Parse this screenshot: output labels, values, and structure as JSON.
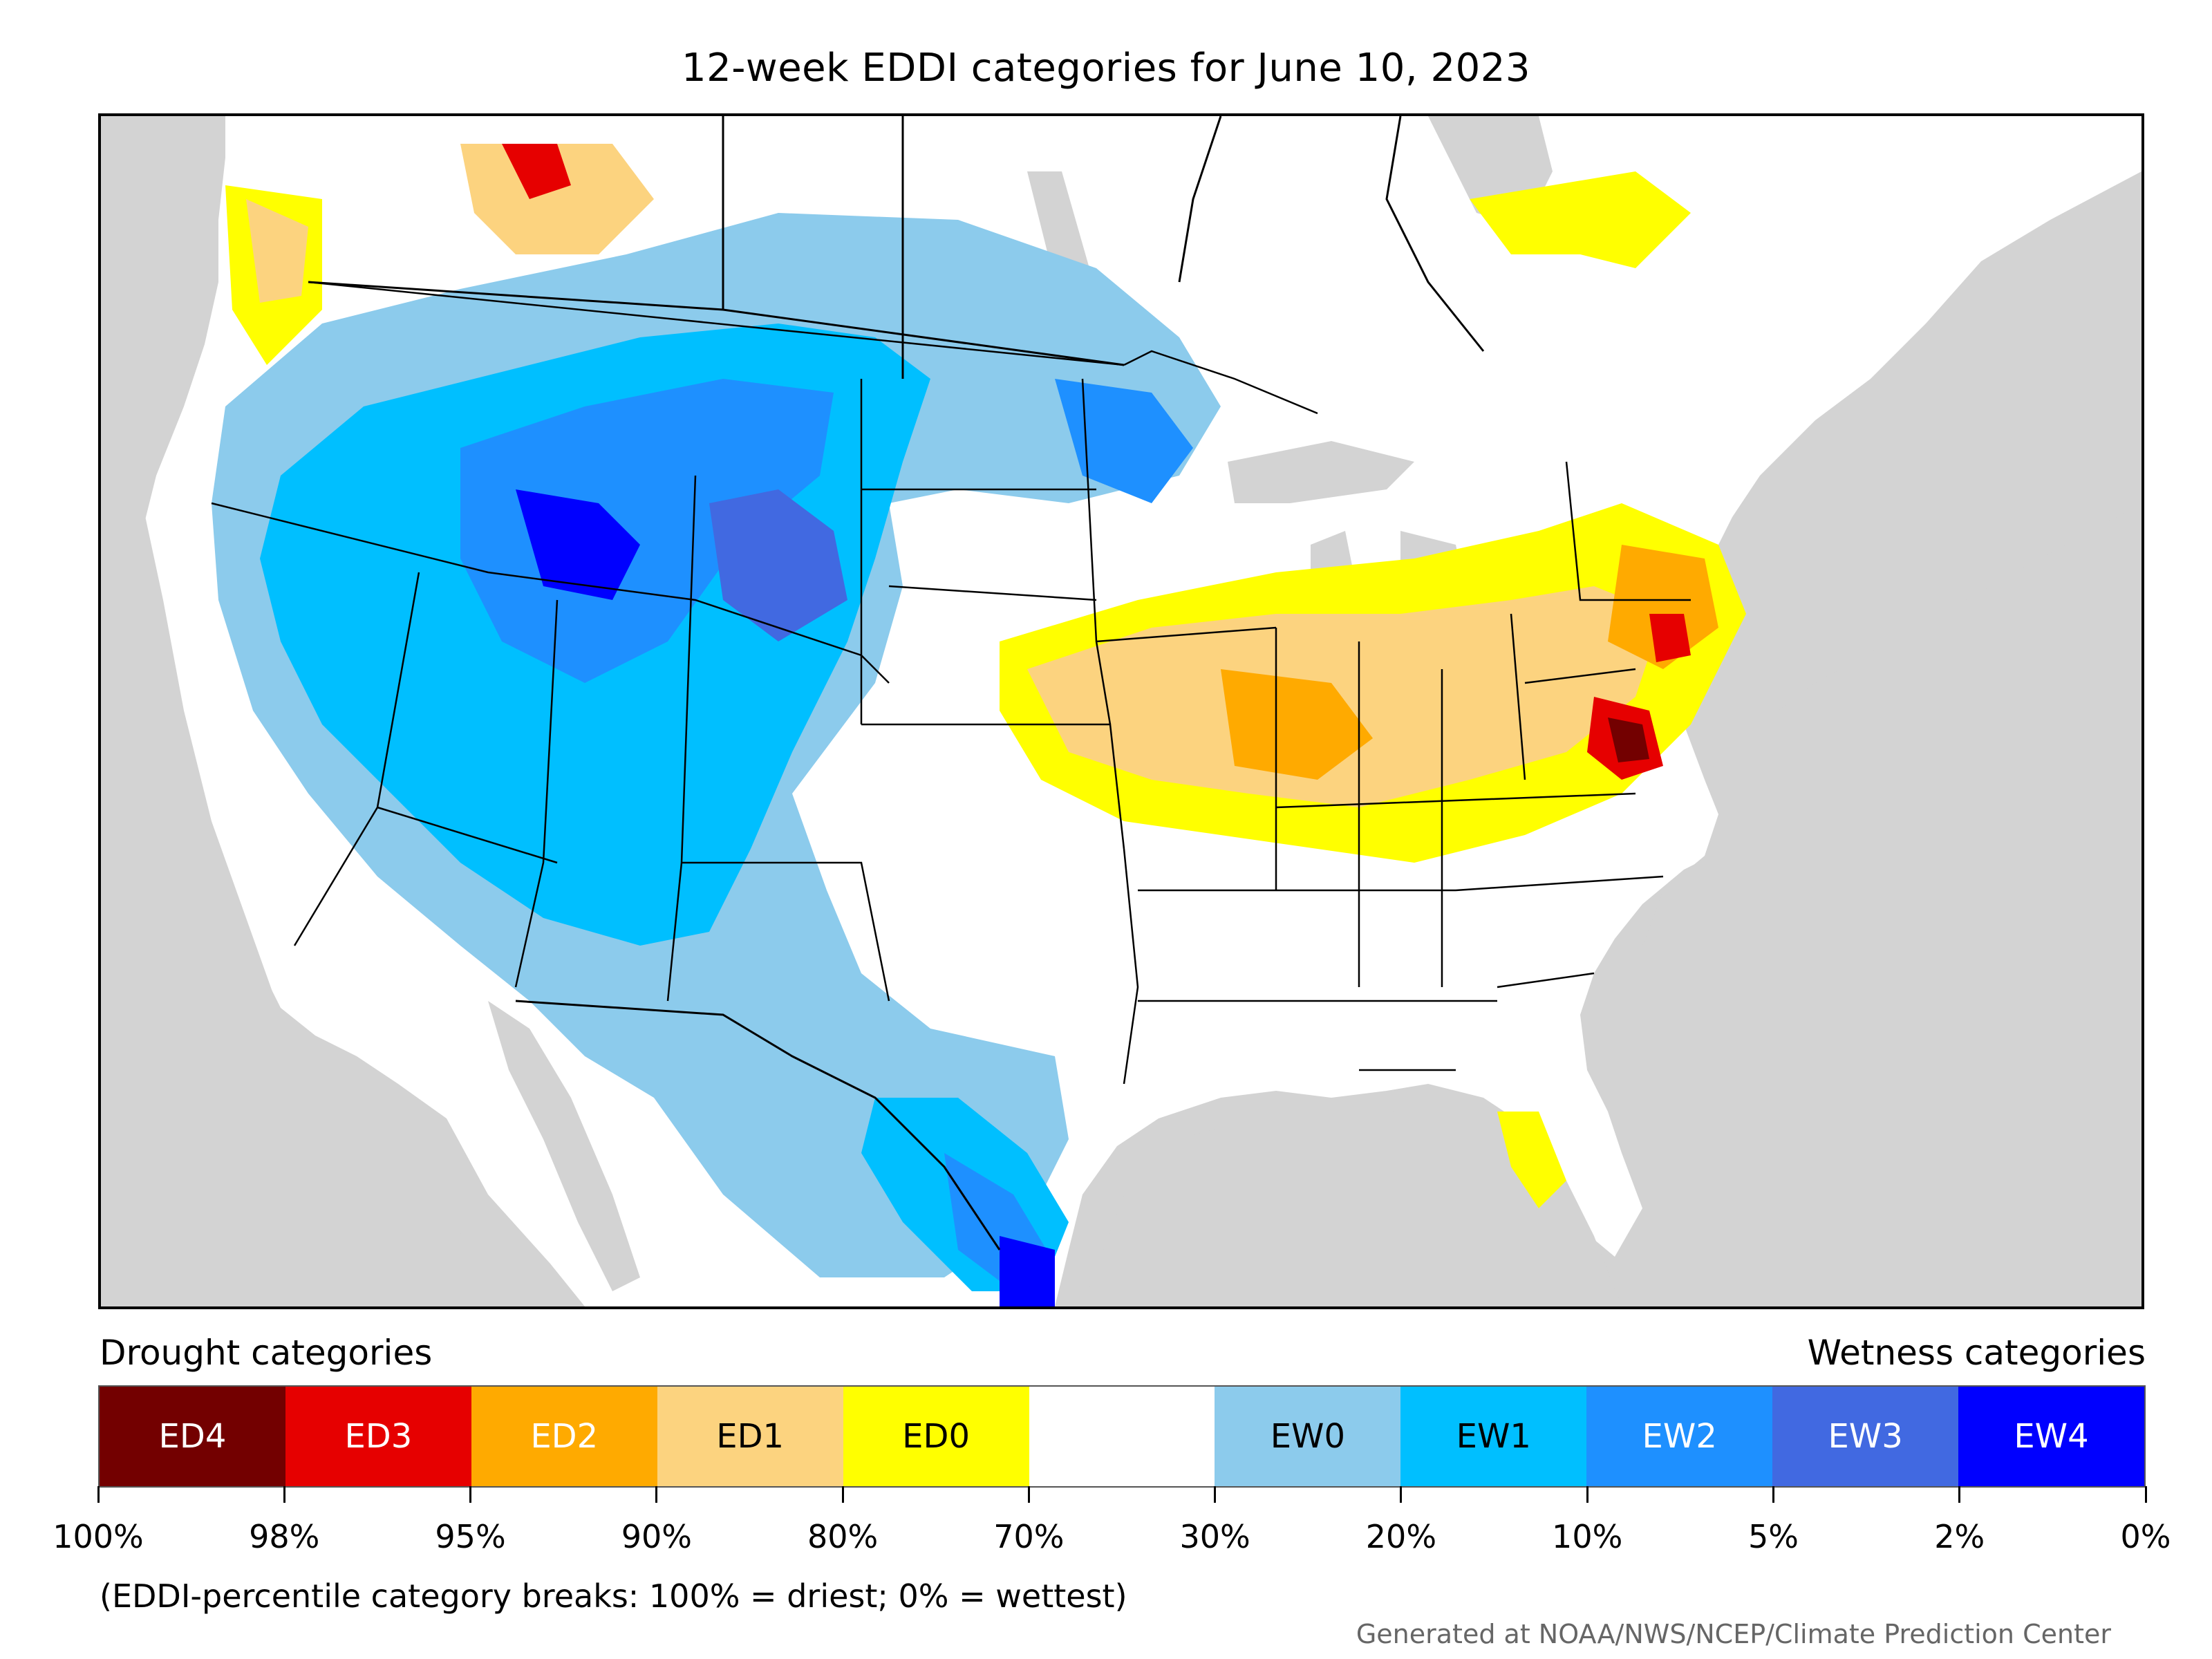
{
  "title": "12-week EDDI categories for June 10, 2023",
  "legend": {
    "drought_heading": "Drought categories",
    "wetness_heading": "Wetness categories",
    "categories": [
      {
        "label": "ED4",
        "color": "#730000",
        "text_color": "#ffffff"
      },
      {
        "label": "ED3",
        "color": "#e60000",
        "text_color": "#ffffff"
      },
      {
        "label": "ED2",
        "color": "#ffaa00",
        "text_color": "#ffffff"
      },
      {
        "label": "ED1",
        "color": "#fcd37f",
        "text_color": "#000000"
      },
      {
        "label": "ED0",
        "color": "#ffff00",
        "text_color": "#000000"
      },
      {
        "label": "",
        "color": "#ffffff",
        "text_color": "#000000"
      },
      {
        "label": "EW0",
        "color": "#8ccbec",
        "text_color": "#000000"
      },
      {
        "label": "EW1",
        "color": "#00bfff",
        "text_color": "#000000"
      },
      {
        "label": "EW2",
        "color": "#1e90ff",
        "text_color": "#ffffff"
      },
      {
        "label": "EW3",
        "color": "#4169e1",
        "text_color": "#ffffff"
      },
      {
        "label": "EW4",
        "color": "#0000ff",
        "text_color": "#ffffff"
      }
    ],
    "tick_labels": [
      "100%",
      "98%",
      "95%",
      "90%",
      "80%",
      "70%",
      "30%",
      "20%",
      "10%",
      "5%",
      "2%",
      "0%"
    ]
  },
  "note": "(EDDI-percentile category breaks: 100% = driest; 0% = wettest)",
  "credit": "Generated at NOAA/NWS/NCEP/Climate Prediction Center",
  "map": {
    "background_color": "#d3d3d3",
    "land_color": "#ffffff",
    "boundary_color": "#000000"
  }
}
